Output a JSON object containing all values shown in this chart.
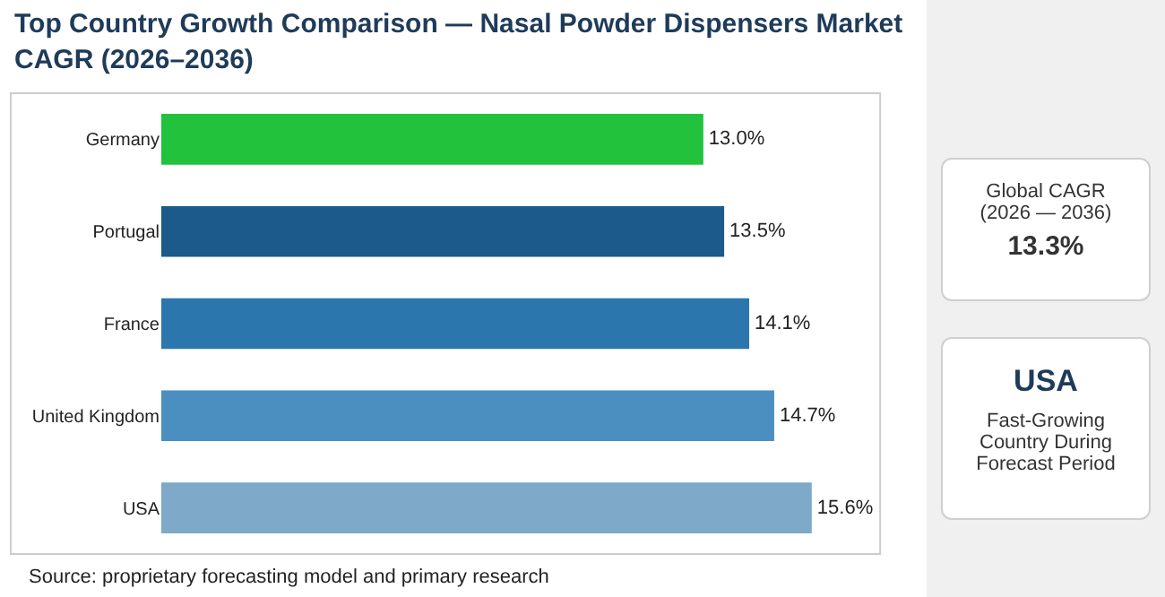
{
  "chart_data": {
    "type": "bar",
    "orientation": "horizontal",
    "title": "Top Country Growth Comparison — Nasal Powder Dispensers Market CAGR (2026–2036)",
    "categories": [
      "Germany",
      "Portugal",
      "France",
      "United Kingdom",
      "USA"
    ],
    "values": [
      13.0,
      13.5,
      14.1,
      14.7,
      15.6
    ],
    "value_labels": [
      "13.0%",
      "13.5%",
      "14.1%",
      "14.7%",
      "15.6%"
    ],
    "colors": [
      "#22c23c",
      "#1b5a8a",
      "#2b76ad",
      "#4a8fc0",
      "#7ea9c8"
    ],
    "grid": false,
    "annotations": [
      "Source: proprietary forecasting model and primary research",
      "Global CAGR (2026 — 2036)",
      "13.3%",
      "USA",
      "Fast-Growing Country During Forecast Period"
    ]
  }
}
